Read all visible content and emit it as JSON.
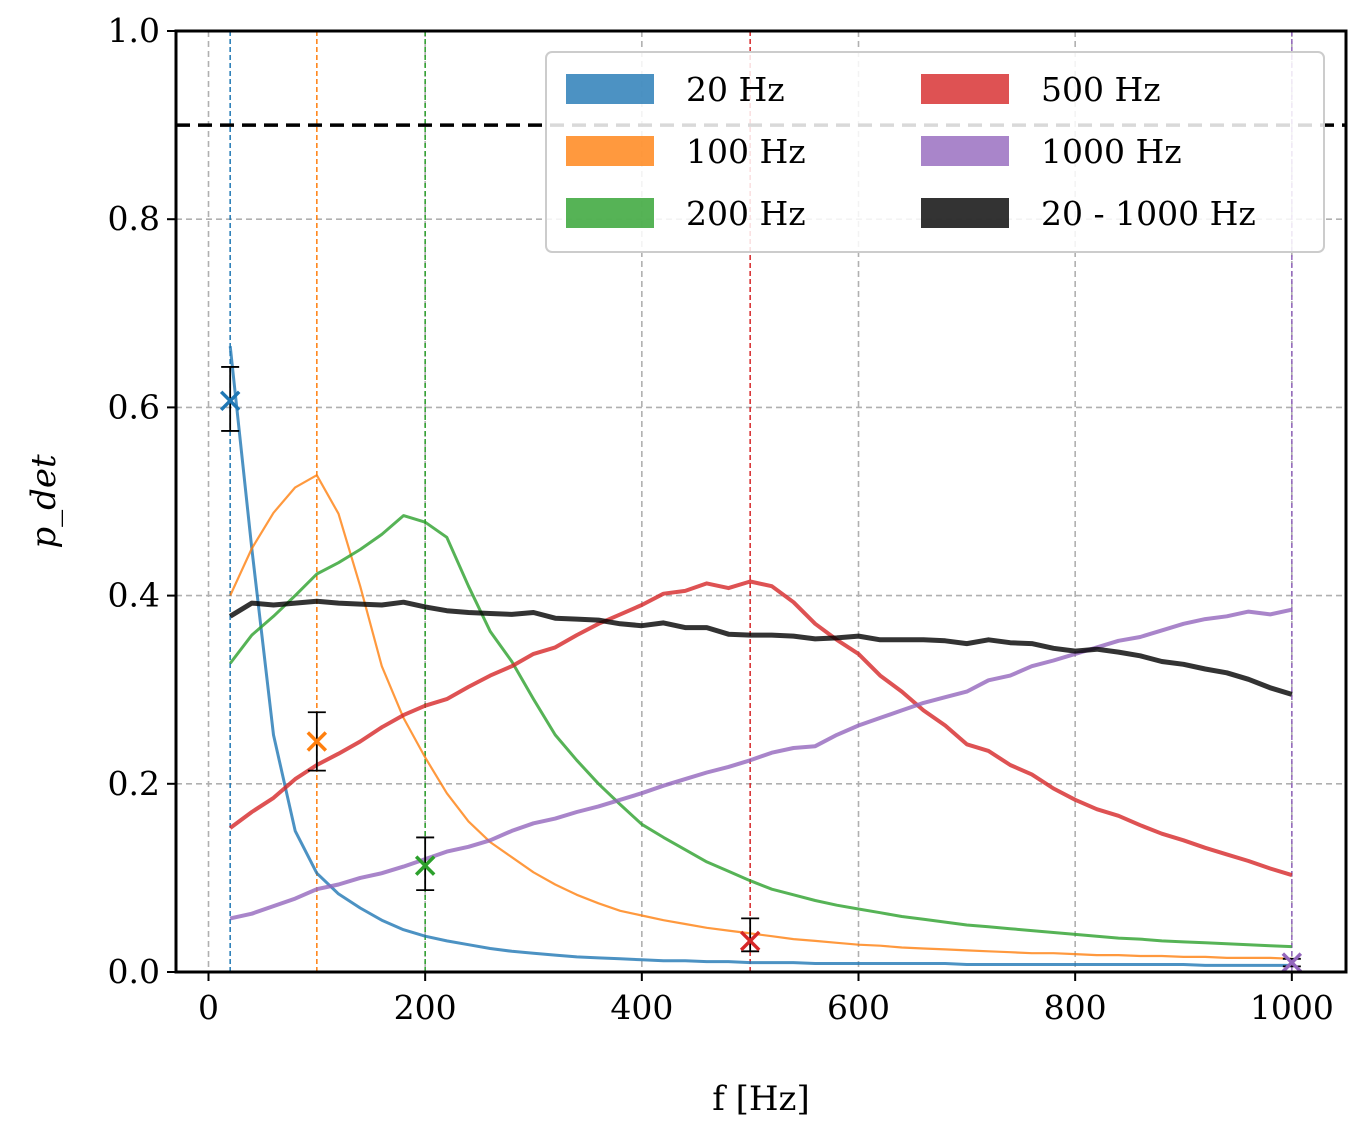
{
  "chart_data": {
    "type": "line",
    "xlabel": "f [Hz]",
    "ylabel": "p_det",
    "xlim": [
      -30,
      1050
    ],
    "ylim": [
      0.0,
      1.0
    ],
    "x_ticks": [
      "0",
      "200",
      "400",
      "600",
      "800",
      "1000"
    ],
    "y_ticks": [
      "0.0",
      "0.2",
      "0.4",
      "0.6",
      "0.8",
      "1.0"
    ],
    "grid": true,
    "legend_position": "top-right",
    "threshold": {
      "y": 0.9,
      "style": "dashed",
      "color": "#000000"
    },
    "x": [
      20,
      40,
      60,
      80,
      100,
      120,
      140,
      160,
      180,
      200,
      220,
      240,
      260,
      280,
      300,
      320,
      340,
      360,
      380,
      400,
      420,
      440,
      460,
      480,
      500,
      520,
      540,
      560,
      580,
      600,
      620,
      640,
      660,
      680,
      700,
      720,
      740,
      760,
      780,
      800,
      820,
      840,
      860,
      880,
      900,
      920,
      940,
      960,
      980,
      1000
    ],
    "series": [
      {
        "name": "20 Hz",
        "color": "#1f77b4",
        "marker_freq": 20,
        "measured": 0.607,
        "err_low": 0.575,
        "err_high": 0.643,
        "values": [
          0.665,
          0.45,
          0.252,
          0.15,
          0.105,
          0.083,
          0.068,
          0.055,
          0.045,
          0.038,
          0.033,
          0.029,
          0.025,
          0.022,
          0.02,
          0.018,
          0.016,
          0.015,
          0.014,
          0.013,
          0.012,
          0.012,
          0.011,
          0.011,
          0.01,
          0.01,
          0.01,
          0.009,
          0.009,
          0.009,
          0.009,
          0.009,
          0.009,
          0.009,
          0.008,
          0.008,
          0.008,
          0.008,
          0.008,
          0.008,
          0.008,
          0.008,
          0.008,
          0.008,
          0.008,
          0.007,
          0.007,
          0.007,
          0.007,
          0.007
        ]
      },
      {
        "name": "100 Hz",
        "color": "#ff7f0e",
        "marker_freq": 100,
        "measured": 0.245,
        "err_low": 0.214,
        "err_high": 0.276,
        "values": [
          0.4,
          0.45,
          0.488,
          0.515,
          0.528,
          0.487,
          0.41,
          0.325,
          0.27,
          0.228,
          0.19,
          0.16,
          0.138,
          0.122,
          0.106,
          0.093,
          0.082,
          0.073,
          0.065,
          0.06,
          0.055,
          0.051,
          0.047,
          0.044,
          0.041,
          0.038,
          0.035,
          0.033,
          0.031,
          0.029,
          0.028,
          0.026,
          0.025,
          0.024,
          0.023,
          0.022,
          0.021,
          0.02,
          0.02,
          0.019,
          0.018,
          0.018,
          0.017,
          0.017,
          0.016,
          0.016,
          0.015,
          0.015,
          0.015,
          0.014
        ]
      },
      {
        "name": "200 Hz",
        "color": "#2ca02c",
        "marker_freq": 200,
        "measured": 0.113,
        "err_low": 0.087,
        "err_high": 0.143,
        "values": [
          0.328,
          0.358,
          0.378,
          0.4,
          0.423,
          0.435,
          0.449,
          0.465,
          0.485,
          0.478,
          0.462,
          0.41,
          0.362,
          0.33,
          0.29,
          0.252,
          0.225,
          0.2,
          0.178,
          0.157,
          0.143,
          0.13,
          0.117,
          0.107,
          0.097,
          0.088,
          0.082,
          0.076,
          0.071,
          0.067,
          0.063,
          0.059,
          0.056,
          0.053,
          0.05,
          0.048,
          0.046,
          0.044,
          0.042,
          0.04,
          0.038,
          0.036,
          0.035,
          0.033,
          0.032,
          0.031,
          0.03,
          0.029,
          0.028,
          0.027
        ]
      },
      {
        "name": "500 Hz",
        "color": "#d62728",
        "marker_freq": 500,
        "measured": 0.033,
        "err_low": 0.022,
        "err_high": 0.057,
        "values": [
          0.153,
          0.17,
          0.185,
          0.205,
          0.22,
          0.232,
          0.245,
          0.26,
          0.273,
          0.283,
          0.29,
          0.303,
          0.315,
          0.325,
          0.338,
          0.345,
          0.358,
          0.37,
          0.38,
          0.39,
          0.402,
          0.405,
          0.413,
          0.408,
          0.415,
          0.41,
          0.393,
          0.37,
          0.353,
          0.338,
          0.315,
          0.298,
          0.278,
          0.262,
          0.242,
          0.235,
          0.22,
          0.21,
          0.195,
          0.183,
          0.173,
          0.166,
          0.156,
          0.147,
          0.14,
          0.132,
          0.125,
          0.118,
          0.11,
          0.103
        ]
      },
      {
        "name": "1000 Hz",
        "color": "#9467bd",
        "marker_freq": 1000,
        "measured": 0.01,
        "err_low": 0.006,
        "err_high": 0.014,
        "values": [
          0.057,
          0.062,
          0.07,
          0.078,
          0.088,
          0.093,
          0.1,
          0.105,
          0.112,
          0.12,
          0.128,
          0.133,
          0.14,
          0.15,
          0.158,
          0.163,
          0.17,
          0.176,
          0.183,
          0.19,
          0.198,
          0.205,
          0.212,
          0.218,
          0.225,
          0.233,
          0.238,
          0.24,
          0.252,
          0.262,
          0.27,
          0.278,
          0.286,
          0.292,
          0.298,
          0.31,
          0.315,
          0.325,
          0.331,
          0.338,
          0.345,
          0.352,
          0.356,
          0.363,
          0.37,
          0.375,
          0.378,
          0.383,
          0.38,
          0.385
        ]
      },
      {
        "name": "20 - 1000 Hz",
        "color": "#000000",
        "values": [
          0.378,
          0.392,
          0.39,
          0.392,
          0.394,
          0.392,
          0.391,
          0.39,
          0.393,
          0.388,
          0.384,
          0.382,
          0.381,
          0.38,
          0.382,
          0.376,
          0.375,
          0.374,
          0.37,
          0.368,
          0.371,
          0.366,
          0.366,
          0.359,
          0.358,
          0.358,
          0.357,
          0.354,
          0.355,
          0.357,
          0.353,
          0.353,
          0.353,
          0.352,
          0.349,
          0.353,
          0.35,
          0.349,
          0.344,
          0.341,
          0.343,
          0.34,
          0.336,
          0.33,
          0.327,
          0.322,
          0.318,
          0.311,
          0.302,
          0.295
        ]
      }
    ]
  }
}
